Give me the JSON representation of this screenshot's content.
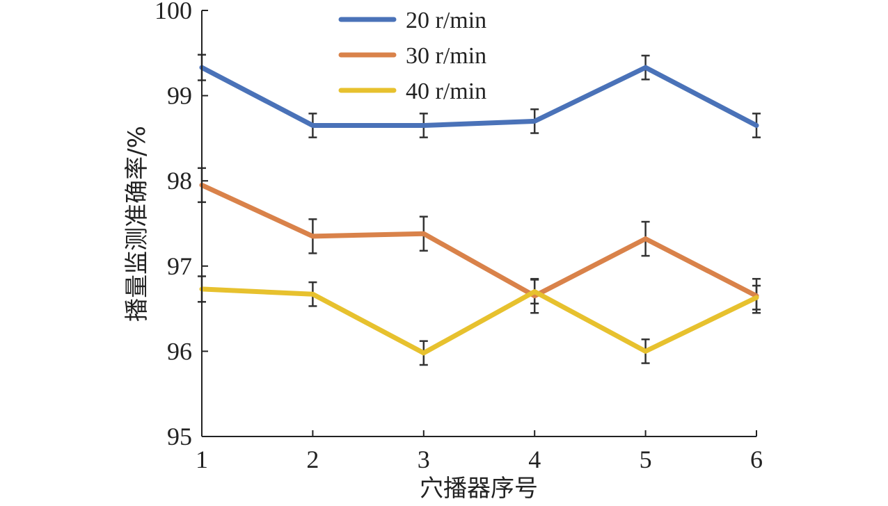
{
  "chart_data": {
    "type": "line",
    "title": "",
    "xlabel": "穴播器序号",
    "ylabel": "播量监测准确率/%",
    "x": [
      1,
      2,
      3,
      4,
      5,
      6
    ],
    "x_tick_labels": [
      "1",
      "2",
      "3",
      "4",
      "5",
      "6"
    ],
    "y_tick_labels": [
      "95",
      "96",
      "97",
      "98",
      "99",
      "100"
    ],
    "xlim": [
      1,
      6
    ],
    "ylim": [
      95,
      100
    ],
    "grid": false,
    "legend_position": "top-center",
    "series": [
      {
        "name": "20 r/min",
        "color": "#4a72b8",
        "values": [
          99.33,
          98.65,
          98.65,
          98.7,
          99.33,
          98.65
        ],
        "errors": [
          0.15,
          0.14,
          0.14,
          0.14,
          0.14,
          0.14
        ]
      },
      {
        "name": "30 r/min",
        "color": "#d9824a",
        "values": [
          97.95,
          97.35,
          97.38,
          96.65,
          97.32,
          96.65
        ],
        "errors": [
          0.2,
          0.2,
          0.2,
          0.2,
          0.2,
          0.2
        ]
      },
      {
        "name": "40 r/min",
        "color": "#e7c12e",
        "values": [
          96.73,
          96.67,
          95.98,
          96.7,
          96.0,
          96.63
        ],
        "errors": [
          0.15,
          0.14,
          0.14,
          0.14,
          0.14,
          0.14
        ]
      }
    ]
  }
}
